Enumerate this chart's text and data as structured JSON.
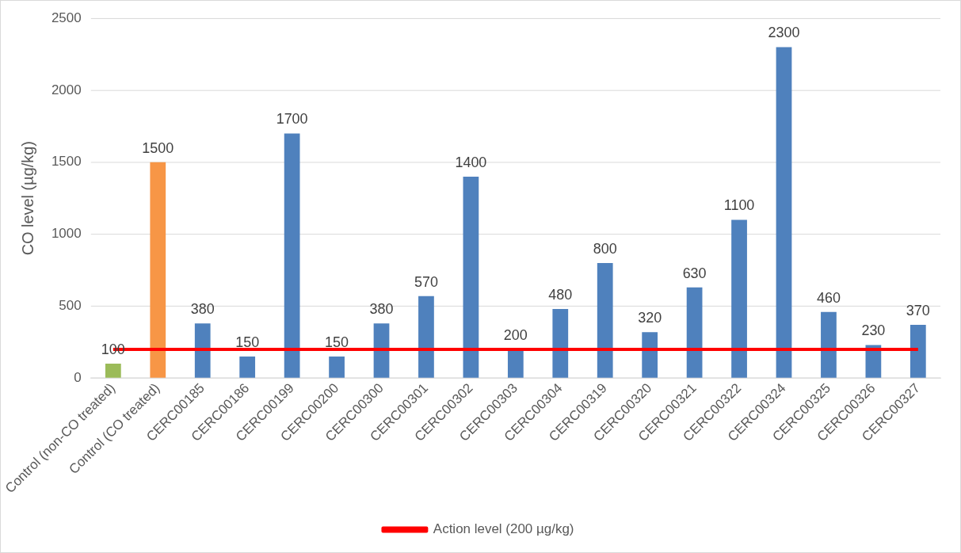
{
  "chart_data": {
    "type": "bar",
    "ylabel": "CO level (µg/kg)",
    "categories": [
      "Control (non-CO treated)",
      "Control (CO treated)",
      "CERC00185",
      "CERC00186",
      "CERC00199",
      "CERC00200",
      "CERC00300",
      "CERC00301",
      "CERC00302",
      "CERC00303",
      "CERC00304",
      "CERC00319",
      "CERC00320",
      "CERC00321",
      "CERC00322",
      "CERC00324",
      "CERC00325",
      "CERC00326",
      "CERC00327"
    ],
    "series": [
      {
        "colors": [
          "#9bbb59",
          "#f79646",
          "#4f81bd",
          "#4f81bd",
          "#4f81bd",
          "#4f81bd",
          "#4f81bd",
          "#4f81bd",
          "#4f81bd",
          "#4f81bd",
          "#4f81bd",
          "#4f81bd",
          "#4f81bd",
          "#4f81bd",
          "#4f81bd",
          "#4f81bd",
          "#4f81bd",
          "#4f81bd",
          "#4f81bd"
        ],
        "values": [
          100,
          1500,
          380,
          150,
          1700,
          150,
          380,
          570,
          1400,
          200,
          480,
          800,
          320,
          630,
          1100,
          2300,
          460,
          230,
          370
        ],
        "data_labels": true
      },
      {
        "type": "line",
        "name": "Action level (200 µg/kg)",
        "color": "#ff0000",
        "values": [
          200,
          200,
          200,
          200,
          200,
          200,
          200,
          200,
          200,
          200,
          200,
          200,
          200,
          200,
          200,
          200,
          200,
          200,
          200
        ]
      }
    ],
    "ylim": [
      0,
      2500
    ],
    "yticks": [
      0,
      500,
      1000,
      1500,
      2000,
      2500
    ],
    "grid": "y",
    "marker": "none",
    "line_style": "solid",
    "legend": "bottom"
  }
}
